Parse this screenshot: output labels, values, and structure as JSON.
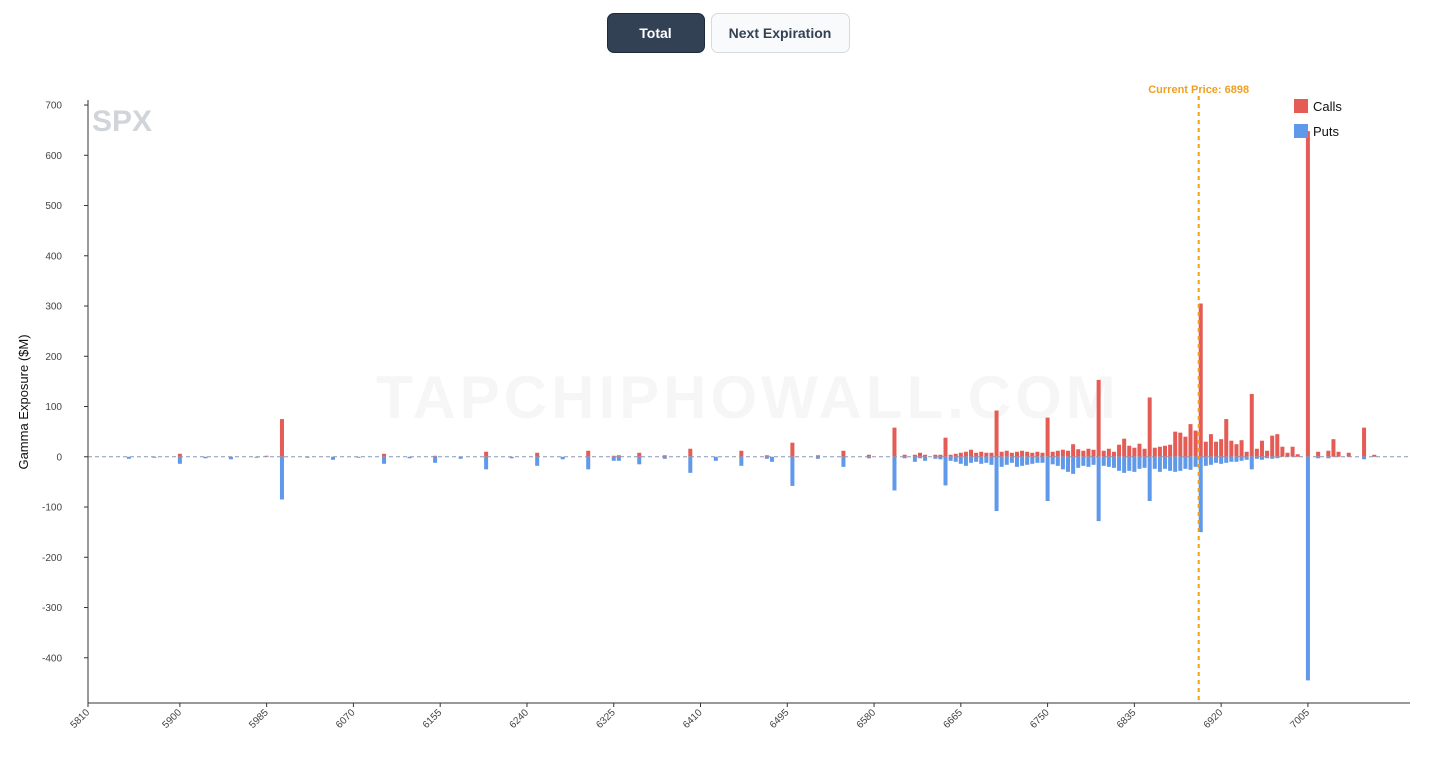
{
  "toolbar": {
    "total_label": "Total",
    "next_label": "Next Expiration"
  },
  "colors": {
    "calls": "#e45c55",
    "puts": "#6098ea",
    "current_price_line": "#f0a020",
    "zero_line": "#8899bb"
  },
  "watermark_text": "TAPCHIPHOWALL.COM",
  "chart_data": {
    "type": "bar",
    "symbol": "SPX",
    "ylabel": "Gamma Exposure ($M)",
    "xlabel": "",
    "xlim": [
      5810,
      7105
    ],
    "ylim": [
      -490,
      710
    ],
    "yticks": [
      -400,
      -300,
      -200,
      -100,
      0,
      100,
      200,
      300,
      400,
      500,
      600,
      700
    ],
    "xticks": [
      5810,
      5900,
      5985,
      6070,
      6155,
      6240,
      6325,
      6410,
      6495,
      6580,
      6665,
      6750,
      6835,
      6920,
      7005
    ],
    "current_price": 6898,
    "current_price_label": "Current Price: 6898",
    "grid": false,
    "legend_position": "top-right",
    "series": [
      {
        "name": "Calls",
        "points": [
          [
            5900,
            6
          ],
          [
            5985,
            2
          ],
          [
            6000,
            75
          ],
          [
            6100,
            6
          ],
          [
            6150,
            2
          ],
          [
            6200,
            10
          ],
          [
            6250,
            8
          ],
          [
            6300,
            12
          ],
          [
            6325,
            2
          ],
          [
            6330,
            3
          ],
          [
            6350,
            8
          ],
          [
            6375,
            3
          ],
          [
            6400,
            16
          ],
          [
            6450,
            12
          ],
          [
            6475,
            3
          ],
          [
            6500,
            28
          ],
          [
            6525,
            3
          ],
          [
            6550,
            12
          ],
          [
            6575,
            4
          ],
          [
            6600,
            58
          ],
          [
            6610,
            4
          ],
          [
            6620,
            4
          ],
          [
            6625,
            8
          ],
          [
            6630,
            4
          ],
          [
            6640,
            4
          ],
          [
            6645,
            4
          ],
          [
            6650,
            38
          ],
          [
            6655,
            4
          ],
          [
            6660,
            6
          ],
          [
            6665,
            8
          ],
          [
            6670,
            10
          ],
          [
            6675,
            14
          ],
          [
            6680,
            8
          ],
          [
            6685,
            10
          ],
          [
            6690,
            8
          ],
          [
            6695,
            8
          ],
          [
            6700,
            92
          ],
          [
            6705,
            10
          ],
          [
            6710,
            12
          ],
          [
            6715,
            8
          ],
          [
            6720,
            10
          ],
          [
            6725,
            12
          ],
          [
            6730,
            10
          ],
          [
            6735,
            8
          ],
          [
            6740,
            10
          ],
          [
            6745,
            8
          ],
          [
            6750,
            78
          ],
          [
            6755,
            10
          ],
          [
            6760,
            12
          ],
          [
            6765,
            14
          ],
          [
            6770,
            12
          ],
          [
            6775,
            25
          ],
          [
            6780,
            15
          ],
          [
            6785,
            12
          ],
          [
            6790,
            16
          ],
          [
            6795,
            14
          ],
          [
            6800,
            153
          ],
          [
            6805,
            12
          ],
          [
            6810,
            16
          ],
          [
            6815,
            10
          ],
          [
            6820,
            24
          ],
          [
            6825,
            36
          ],
          [
            6830,
            22
          ],
          [
            6835,
            18
          ],
          [
            6840,
            26
          ],
          [
            6845,
            16
          ],
          [
            6850,
            118
          ],
          [
            6855,
            18
          ],
          [
            6860,
            20
          ],
          [
            6865,
            22
          ],
          [
            6870,
            24
          ],
          [
            6875,
            50
          ],
          [
            6880,
            48
          ],
          [
            6885,
            40
          ],
          [
            6890,
            65
          ],
          [
            6895,
            52
          ],
          [
            6900,
            305
          ],
          [
            6905,
            30
          ],
          [
            6910,
            45
          ],
          [
            6915,
            30
          ],
          [
            6920,
            35
          ],
          [
            6925,
            75
          ],
          [
            6930,
            32
          ],
          [
            6935,
            25
          ],
          [
            6940,
            33
          ],
          [
            6945,
            10
          ],
          [
            6950,
            125
          ],
          [
            6955,
            16
          ],
          [
            6960,
            32
          ],
          [
            6965,
            12
          ],
          [
            6970,
            42
          ],
          [
            6975,
            45
          ],
          [
            6980,
            20
          ],
          [
            6985,
            8
          ],
          [
            6990,
            20
          ],
          [
            6995,
            5
          ],
          [
            7005,
            648
          ],
          [
            7015,
            10
          ],
          [
            7025,
            12
          ],
          [
            7030,
            35
          ],
          [
            7035,
            10
          ],
          [
            7045,
            8
          ],
          [
            7060,
            58
          ],
          [
            7070,
            4
          ]
        ]
      },
      {
        "name": "Puts",
        "points": [
          [
            5850,
            -4
          ],
          [
            5875,
            -2
          ],
          [
            5900,
            -14
          ],
          [
            5925,
            -3
          ],
          [
            5950,
            -5
          ],
          [
            5975,
            -2
          ],
          [
            6000,
            -85
          ],
          [
            6025,
            -2
          ],
          [
            6050,
            -6
          ],
          [
            6075,
            -2
          ],
          [
            6100,
            -14
          ],
          [
            6125,
            -3
          ],
          [
            6150,
            -12
          ],
          [
            6175,
            -4
          ],
          [
            6200,
            -25
          ],
          [
            6225,
            -3
          ],
          [
            6250,
            -18
          ],
          [
            6275,
            -5
          ],
          [
            6300,
            -25
          ],
          [
            6325,
            -8
          ],
          [
            6330,
            -8
          ],
          [
            6350,
            -15
          ],
          [
            6375,
            -4
          ],
          [
            6400,
            -32
          ],
          [
            6425,
            -8
          ],
          [
            6450,
            -18
          ],
          [
            6475,
            -4
          ],
          [
            6480,
            -10
          ],
          [
            6500,
            -58
          ],
          [
            6525,
            -4
          ],
          [
            6550,
            -20
          ],
          [
            6575,
            -3
          ],
          [
            6600,
            -67
          ],
          [
            6610,
            -3
          ],
          [
            6620,
            -10
          ],
          [
            6625,
            -3
          ],
          [
            6630,
            -8
          ],
          [
            6640,
            -4
          ],
          [
            6645,
            -5
          ],
          [
            6650,
            -57
          ],
          [
            6655,
            -8
          ],
          [
            6660,
            -10
          ],
          [
            6665,
            -14
          ],
          [
            6670,
            -18
          ],
          [
            6675,
            -12
          ],
          [
            6680,
            -10
          ],
          [
            6685,
            -14
          ],
          [
            6690,
            -12
          ],
          [
            6695,
            -16
          ],
          [
            6700,
            -108
          ],
          [
            6705,
            -20
          ],
          [
            6710,
            -16
          ],
          [
            6715,
            -12
          ],
          [
            6720,
            -20
          ],
          [
            6725,
            -18
          ],
          [
            6730,
            -16
          ],
          [
            6735,
            -14
          ],
          [
            6740,
            -12
          ],
          [
            6745,
            -12
          ],
          [
            6750,
            -88
          ],
          [
            6755,
            -15
          ],
          [
            6760,
            -18
          ],
          [
            6765,
            -25
          ],
          [
            6770,
            -30
          ],
          [
            6775,
            -34
          ],
          [
            6780,
            -22
          ],
          [
            6785,
            -18
          ],
          [
            6790,
            -20
          ],
          [
            6795,
            -16
          ],
          [
            6800,
            -128
          ],
          [
            6805,
            -18
          ],
          [
            6810,
            -20
          ],
          [
            6815,
            -22
          ],
          [
            6820,
            -28
          ],
          [
            6825,
            -32
          ],
          [
            6830,
            -28
          ],
          [
            6835,
            -30
          ],
          [
            6840,
            -24
          ],
          [
            6845,
            -22
          ],
          [
            6850,
            -88
          ],
          [
            6855,
            -24
          ],
          [
            6860,
            -30
          ],
          [
            6865,
            -24
          ],
          [
            6870,
            -28
          ],
          [
            6875,
            -30
          ],
          [
            6880,
            -28
          ],
          [
            6885,
            -24
          ],
          [
            6890,
            -26
          ],
          [
            6895,
            -20
          ],
          [
            6900,
            -150
          ],
          [
            6905,
            -18
          ],
          [
            6910,
            -16
          ],
          [
            6915,
            -12
          ],
          [
            6920,
            -14
          ],
          [
            6925,
            -12
          ],
          [
            6930,
            -10
          ],
          [
            6935,
            -10
          ],
          [
            6940,
            -8
          ],
          [
            6945,
            -6
          ],
          [
            6950,
            -25
          ],
          [
            6955,
            -4
          ],
          [
            6960,
            -6
          ],
          [
            6965,
            -3
          ],
          [
            6970,
            -4
          ],
          [
            6975,
            -3
          ],
          [
            7005,
            -445
          ],
          [
            7015,
            -3
          ],
          [
            7025,
            -3
          ],
          [
            7060,
            -5
          ]
        ]
      }
    ]
  }
}
